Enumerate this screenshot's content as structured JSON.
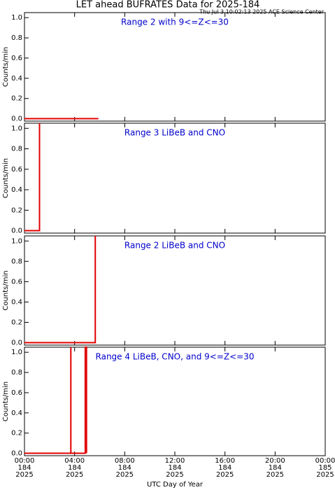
{
  "title": "LET ahead BUFRATES Data for 2025-184",
  "timestamp": "Thu Jul  3 10:02:13 2025 ACE Science Center",
  "x_axis": {
    "label": "UTC Day of Year",
    "xlim": [
      0,
      24
    ],
    "xticks": [
      {
        "value": 0,
        "label": "00:00"
      },
      {
        "value": 4,
        "label": "04:00"
      },
      {
        "value": 8,
        "label": "08:00"
      },
      {
        "value": 12,
        "label": "12:00"
      },
      {
        "value": 16,
        "label": "16:00"
      },
      {
        "value": 20,
        "label": "20:00"
      },
      {
        "value": 24,
        "label": "00:00"
      }
    ],
    "days": [
      "184",
      "184",
      "184",
      "184",
      "184",
      "184",
      "185"
    ],
    "years": [
      "2025",
      "2025",
      "2025",
      "2025",
      "2025",
      "2025",
      "2025"
    ]
  },
  "chart_data": [
    {
      "type": "line",
      "annotation": "Range 2 with 9<=Z<=30",
      "ylabel": "Counts/min",
      "ylim": [
        -0.01,
        1.05
      ],
      "yticks": [
        {
          "value": 0,
          "label": "0.0"
        },
        0.2,
        0.4,
        0.6,
        0.8,
        {
          "value": 1,
          "label": "1.0"
        }
      ],
      "series": [
        {
          "color": "#e00000",
          "x": [
            0,
            5.9
          ],
          "values": [
            0,
            0
          ]
        }
      ]
    },
    {
      "type": "line",
      "annotation": "Range 3 LiBeB and CNO",
      "ylabel": "Counts/min",
      "ylim": [
        -0.01,
        1.05
      ],
      "yticks": [
        {
          "value": 0,
          "label": "0.0"
        },
        0.2,
        0.4,
        0.6,
        0.8,
        {
          "value": 1,
          "label": "1.0"
        }
      ],
      "series": [
        {
          "color": "#e00000",
          "x": [
            0,
            1.2,
            1.2
          ],
          "values": [
            0,
            0,
            1.05
          ]
        }
      ]
    },
    {
      "type": "line",
      "annotation": "Range 2 LiBeB and CNO",
      "ylabel": "Counts/min",
      "ylim": [
        -0.01,
        1.05
      ],
      "yticks": [
        {
          "value": 0,
          "label": "0.0"
        },
        0.2,
        0.4,
        0.6,
        0.8,
        {
          "value": 1,
          "label": "1.0"
        }
      ],
      "series": [
        {
          "color": "#e00000",
          "x": [
            0,
            5.65,
            5.65
          ],
          "values": [
            0,
            0,
            1.05
          ]
        }
      ]
    },
    {
      "type": "line",
      "annotation": "Range 4 LiBeB, CNO, and 9<=Z<=30",
      "ylabel": "Counts/min",
      "ylim": [
        -0.01,
        1.05
      ],
      "yticks": [
        {
          "value": 0,
          "label": "0.0"
        },
        0.2,
        0.4,
        0.6,
        0.8,
        {
          "value": 1,
          "label": "1.0"
        }
      ],
      "series": [
        {
          "color": "#e00000",
          "x": [
            0,
            3.7,
            3.7,
            3.7,
            4.85,
            4.85,
            4.95,
            4.95
          ],
          "values": [
            0,
            0,
            1.05,
            0,
            0,
            1.05,
            1.05,
            0
          ]
        }
      ]
    }
  ]
}
